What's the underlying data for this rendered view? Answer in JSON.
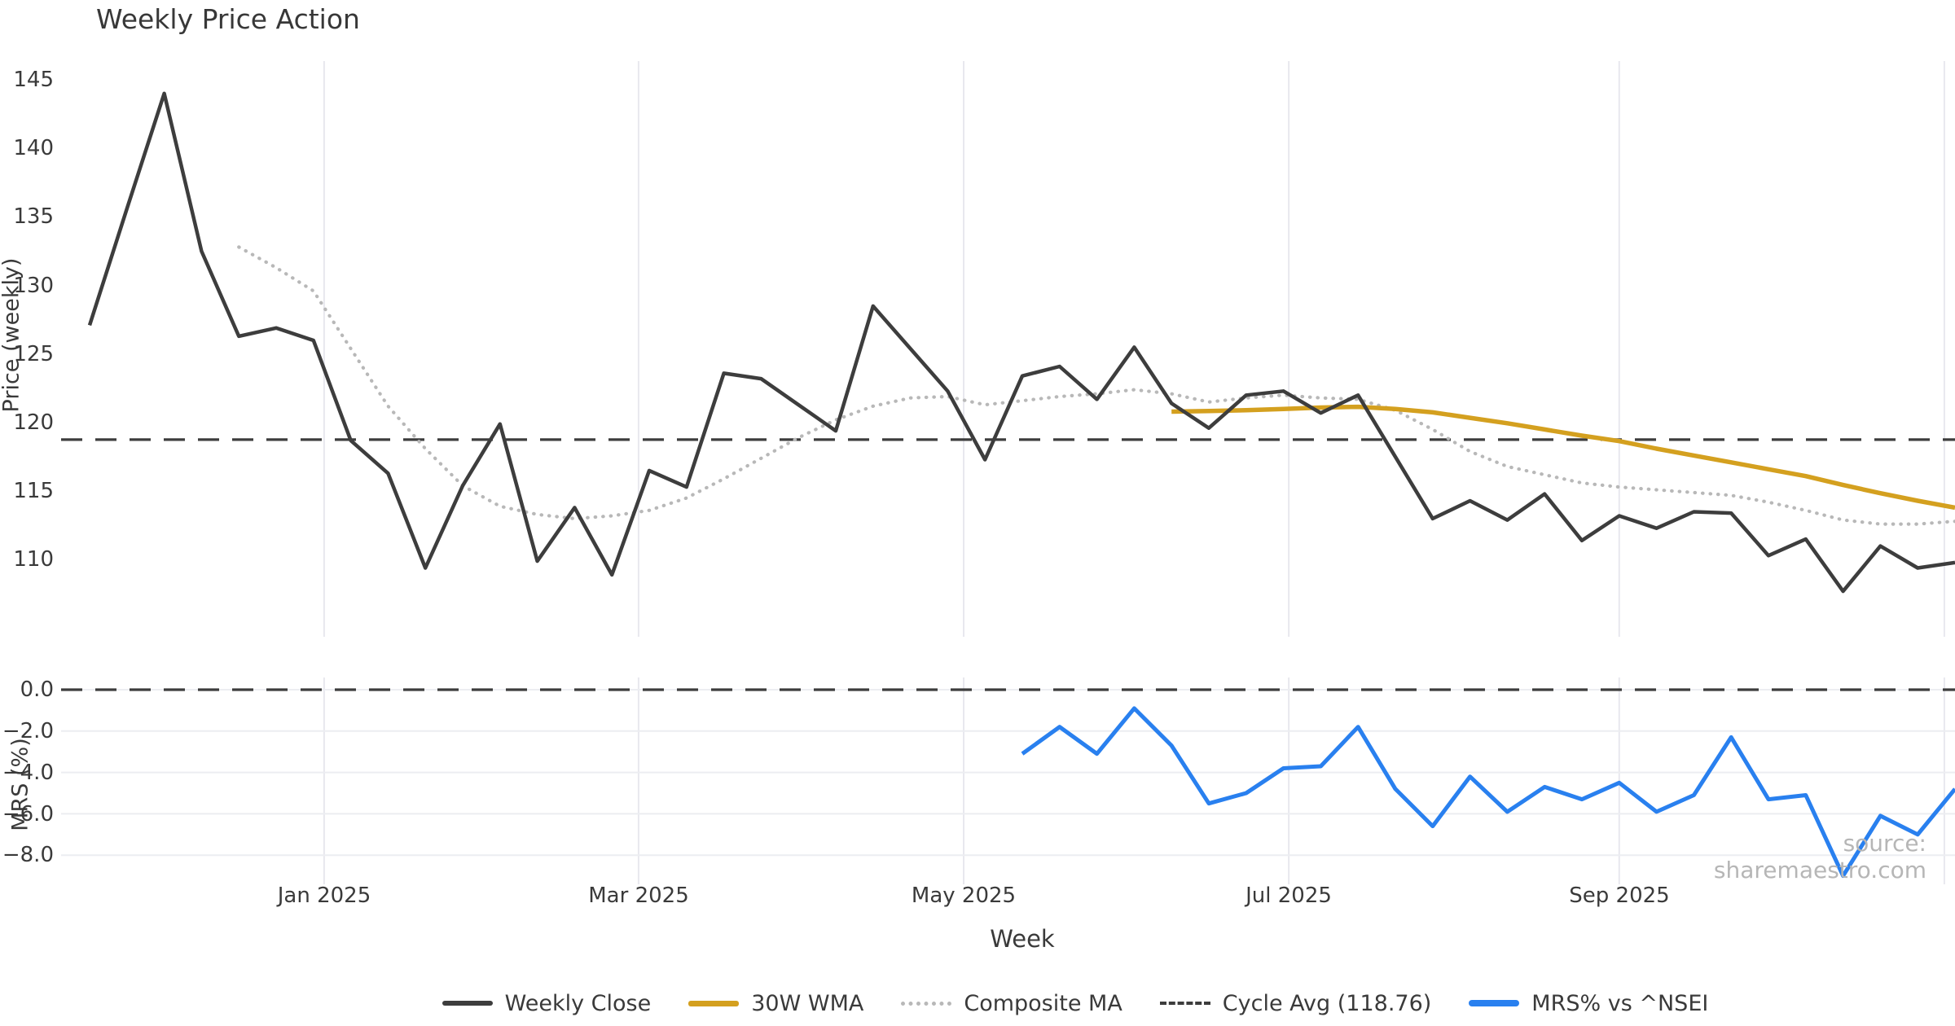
{
  "header": {
    "title": "Weekly Price Action"
  },
  "watermark": {
    "text": "source: sharemaestro.com"
  },
  "axes": {
    "price": {
      "label": "Price (weekly)",
      "ticks": [
        "145",
        "140",
        "135",
        "130",
        "125",
        "120",
        "115",
        "110"
      ]
    },
    "mrs": {
      "label": "MRS (%)",
      "ticks": [
        "0.0",
        "−2.0",
        "−4.0",
        "−6.0",
        "−8.0"
      ]
    },
    "x": {
      "label": "Week",
      "ticks": [
        "Jan 2025",
        "Mar 2025",
        "May 2025",
        "Jul 2025",
        "Sep 2025"
      ]
    }
  },
  "legend": {
    "items": [
      {
        "label": "Weekly Close",
        "style": "solid",
        "color": "#3d3d3d"
      },
      {
        "label": "30W WMA",
        "style": "solid",
        "color": "#d4a01f"
      },
      {
        "label": "Composite MA",
        "style": "dotted",
        "color": "#b8b8b8"
      },
      {
        "label": "Cycle Avg (118.76)",
        "style": "dashed",
        "color": "#3d3d3d"
      },
      {
        "label": "MRS% vs ^NSEI",
        "style": "solid",
        "color": "#2980ef"
      }
    ]
  },
  "colors": {
    "weekly_close": "#3d3d3d",
    "wma_30w": "#d4a01f",
    "composite_ma": "#b8b8b8",
    "cycle_avg": "#3d3d3d",
    "mrs": "#2980ef",
    "vgrid": "#e8e8ee",
    "hgrid": "#ecedf1",
    "text": "#3a3a3a",
    "watermark": "#b6b6b6"
  },
  "chart_data": [
    {
      "type": "line",
      "panel": "price",
      "title": "Weekly Price Action",
      "xlabel": "Week",
      "ylabel": "Price (weekly)",
      "ylim": [
        104.3,
        146.4
      ],
      "yticks": [
        145,
        140,
        135,
        130,
        125,
        120,
        115,
        110
      ],
      "grid": "vertical-only",
      "legend_position": "bottom-center",
      "xtick_labels": [
        "Jan 2025",
        "Mar 2025",
        "May 2025",
        "Jul 2025",
        "Sep 2025"
      ],
      "month_gridline_week_positions": [
        6.2857,
        14.7143,
        23.4286,
        32.1429,
        41.0,
        49.7143
      ],
      "x_dates": [
        "2024-11-18",
        "2024-11-25",
        "2024-12-02",
        "2024-12-09",
        "2024-12-16",
        "2024-12-23",
        "2024-12-30",
        "2025-01-06",
        "2025-01-13",
        "2025-01-20",
        "2025-01-27",
        "2025-02-03",
        "2025-02-10",
        "2025-02-17",
        "2025-02-24",
        "2025-03-03",
        "2025-03-10",
        "2025-03-17",
        "2025-03-24",
        "2025-03-31",
        "2025-04-07",
        "2025-04-14",
        "2025-04-21",
        "2025-04-28",
        "2025-05-05",
        "2025-05-12",
        "2025-05-19",
        "2025-05-26",
        "2025-06-02",
        "2025-06-09",
        "2025-06-16",
        "2025-06-23",
        "2025-06-30",
        "2025-07-07",
        "2025-07-14",
        "2025-07-21",
        "2025-07-28",
        "2025-08-04",
        "2025-08-11",
        "2025-08-18",
        "2025-08-25",
        "2025-09-01",
        "2025-09-08",
        "2025-09-15",
        "2025-09-22",
        "2025-09-29",
        "2025-10-06",
        "2025-10-13",
        "2025-10-20",
        "2025-10-27",
        "2025-11-03"
      ],
      "series": [
        {
          "name": "Weekly Close",
          "style": "solid",
          "color": "#3d3d3d",
          "values": [
            127.1,
            135.6,
            144.0,
            132.5,
            126.3,
            126.9,
            126.0,
            118.7,
            116.3,
            109.4,
            115.4,
            119.9,
            109.9,
            113.8,
            108.9,
            116.5,
            115.3,
            123.6,
            123.2,
            121.3,
            119.4,
            128.5,
            125.4,
            122.3,
            117.3,
            123.4,
            124.1,
            121.7,
            125.5,
            121.4,
            119.6,
            122.0,
            122.3,
            120.7,
            122.0,
            117.5,
            113.0,
            114.3,
            112.9,
            114.8,
            111.4,
            113.2,
            112.3,
            113.5,
            113.4,
            110.3,
            111.5,
            107.7,
            111.0,
            109.4,
            109.8
          ]
        },
        {
          "name": "30W WMA",
          "style": "solid",
          "color": "#d4a01f",
          "values": [
            null,
            null,
            null,
            null,
            null,
            null,
            null,
            null,
            null,
            null,
            null,
            null,
            null,
            null,
            null,
            null,
            null,
            null,
            null,
            null,
            null,
            null,
            null,
            null,
            null,
            null,
            null,
            null,
            null,
            120.8,
            120.85,
            120.9,
            121.0,
            121.1,
            121.15,
            121.0,
            120.75,
            120.35,
            119.95,
            119.5,
            119.05,
            118.65,
            118.1,
            117.6,
            117.1,
            116.6,
            116.1,
            115.45,
            114.85,
            114.3,
            113.8
          ]
        },
        {
          "name": "Composite MA",
          "style": "dotted",
          "color": "#b8b8b8",
          "values": [
            null,
            null,
            null,
            null,
            132.8,
            131.3,
            129.6,
            125.4,
            121.2,
            118.1,
            115.4,
            113.9,
            113.3,
            113.0,
            113.2,
            113.6,
            114.5,
            115.9,
            117.4,
            118.9,
            120.2,
            121.2,
            121.8,
            121.9,
            121.3,
            121.6,
            121.9,
            122.1,
            122.4,
            122.1,
            121.5,
            121.8,
            122.0,
            121.8,
            121.7,
            120.9,
            119.5,
            117.9,
            116.8,
            116.2,
            115.6,
            115.3,
            115.1,
            114.9,
            114.7,
            114.2,
            113.6,
            112.9,
            112.6,
            112.6,
            112.8
          ]
        }
      ],
      "reference_lines": [
        {
          "name": "Cycle Avg (118.76)",
          "value": 118.76,
          "style": "dashed",
          "color": "#3d3d3d"
        }
      ]
    },
    {
      "type": "line",
      "panel": "mrs",
      "ylabel": "MRS (%)",
      "ylim": [
        -9.4,
        0.6
      ],
      "yticks": [
        0.0,
        -2.0,
        -4.0,
        -6.0,
        -8.0
      ],
      "grid": "horizontal-and-vertical",
      "series": [
        {
          "name": "MRS% vs ^NSEI",
          "style": "solid",
          "color": "#2980ef",
          "values": [
            null,
            null,
            null,
            null,
            null,
            null,
            null,
            null,
            null,
            null,
            null,
            null,
            null,
            null,
            null,
            null,
            null,
            null,
            null,
            null,
            null,
            null,
            null,
            null,
            null,
            -3.1,
            -1.8,
            -3.1,
            -0.9,
            -2.7,
            -5.5,
            -5.0,
            -3.8,
            -3.7,
            -1.8,
            -4.8,
            -6.6,
            -4.2,
            -5.9,
            -4.7,
            -5.3,
            -4.5,
            -5.9,
            -5.1,
            -2.3,
            -5.3,
            -5.1,
            -9.0,
            -6.1,
            -7.0,
            -4.8
          ]
        }
      ],
      "reference_lines": [
        {
          "name": "Zero line",
          "value": 0.0,
          "style": "dashed",
          "color": "#3d3d3d"
        }
      ]
    }
  ]
}
